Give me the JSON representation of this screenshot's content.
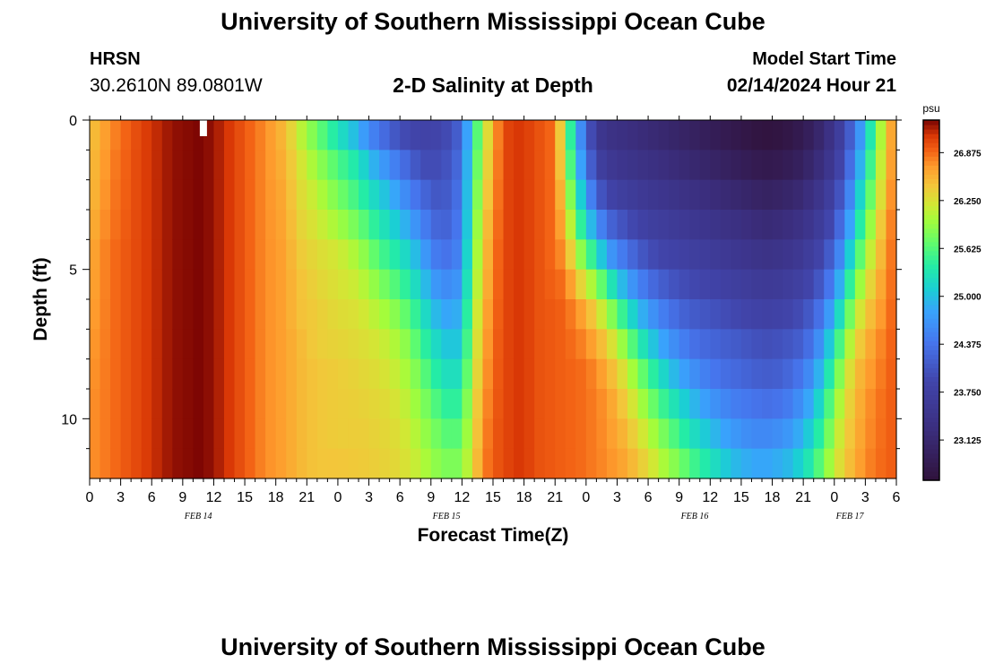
{
  "page": {
    "title_top": "University of Southern Mississippi Ocean Cube",
    "title_bottom": "University of Southern Mississippi Ocean Cube",
    "station": "HRSN",
    "coords": "30.2610N  89.0801W",
    "subtitle": "2-D Salinity at Depth",
    "start_label": "Model Start Time",
    "start_value": "02/14/2024 Hour 21"
  },
  "chart_data": {
    "type": "heatmap",
    "title": "2-D Salinity at Depth",
    "xlabel": "Forecast Time(Z)",
    "ylabel": "Depth (ft)",
    "x_hour_range": [
      0,
      78
    ],
    "ylim": [
      0,
      12
    ],
    "x_ticks": [
      {
        "hour": 0,
        "label": "0"
      },
      {
        "hour": 3,
        "label": "3"
      },
      {
        "hour": 6,
        "label": "6"
      },
      {
        "hour": 9,
        "label": "9"
      },
      {
        "hour": 12,
        "label": "12"
      },
      {
        "hour": 15,
        "label": "15"
      },
      {
        "hour": 18,
        "label": "18"
      },
      {
        "hour": 21,
        "label": "21"
      },
      {
        "hour": 24,
        "label": "0"
      },
      {
        "hour": 27,
        "label": "3"
      },
      {
        "hour": 30,
        "label": "6"
      },
      {
        "hour": 33,
        "label": "9"
      },
      {
        "hour": 36,
        "label": "12"
      },
      {
        "hour": 39,
        "label": "15"
      },
      {
        "hour": 42,
        "label": "18"
      },
      {
        "hour": 45,
        "label": "21"
      },
      {
        "hour": 48,
        "label": "0"
      },
      {
        "hour": 51,
        "label": "3"
      },
      {
        "hour": 54,
        "label": "6"
      },
      {
        "hour": 57,
        "label": "9"
      },
      {
        "hour": 60,
        "label": "12"
      },
      {
        "hour": 63,
        "label": "15"
      },
      {
        "hour": 66,
        "label": "18"
      },
      {
        "hour": 69,
        "label": "21"
      },
      {
        "hour": 72,
        "label": "0"
      },
      {
        "hour": 75,
        "label": "3"
      },
      {
        "hour": 78,
        "label": "6"
      }
    ],
    "date_labels": [
      {
        "hour": 10.5,
        "label": "FEB 14"
      },
      {
        "hour": 34.5,
        "label": "FEB 15"
      },
      {
        "hour": 58.5,
        "label": "FEB 16"
      },
      {
        "hour": 73.5,
        "label": "FEB 17"
      }
    ],
    "y_ticks": [
      {
        "depth": 0,
        "label": "0"
      },
      {
        "depth": 5,
        "label": "5"
      },
      {
        "depth": 10,
        "label": "10"
      }
    ],
    "colorbar": {
      "unit": "psu",
      "range": [
        22.6,
        27.3
      ],
      "ticks": [
        23.125,
        23.75,
        24.375,
        25.0,
        25.625,
        26.25,
        26.875
      ],
      "tick_labels": [
        "23.125",
        "23.750",
        "24.375",
        "25.000",
        "25.625",
        "26.250",
        "26.875"
      ]
    },
    "colormap": [
      [
        22.6,
        "#30123b"
      ],
      [
        23.3,
        "#3b2f80"
      ],
      [
        23.9,
        "#4145ab"
      ],
      [
        24.4,
        "#4675ed"
      ],
      [
        24.8,
        "#39a2fc"
      ],
      [
        25.1,
        "#1bcfd4"
      ],
      [
        25.4,
        "#24eca6"
      ],
      [
        25.7,
        "#61fc6c"
      ],
      [
        26.0,
        "#a4fc3b"
      ],
      [
        26.2,
        "#d1e834"
      ],
      [
        26.45,
        "#f3c63a"
      ],
      [
        26.7,
        "#fe9b2d"
      ],
      [
        26.9,
        "#f36315"
      ],
      [
        27.1,
        "#d93806"
      ],
      [
        27.3,
        "#7a0403"
      ]
    ],
    "grid": {
      "hour_step": 1,
      "depth_layers": 12,
      "profile_hours": [
        0,
        2,
        5,
        8,
        11,
        13,
        15,
        17,
        19,
        20,
        22,
        24,
        26,
        27,
        28,
        29,
        30,
        31,
        32,
        33,
        34,
        35,
        36,
        37,
        38,
        39,
        40,
        41,
        42,
        43,
        44,
        45,
        46,
        47,
        48,
        49,
        50,
        51,
        52,
        53,
        54,
        55,
        56,
        57,
        58,
        59,
        60,
        61,
        62,
        63,
        64,
        65,
        66,
        67,
        68,
        69,
        70,
        71,
        72,
        73,
        74,
        75,
        76,
        77,
        78
      ],
      "depth_profiles": [
        [
          26.45,
          26.48,
          26.5,
          26.55,
          26.6,
          26.62,
          26.65,
          26.68,
          26.7,
          26.72,
          26.72,
          26.72
        ],
        [
          26.75,
          26.78,
          26.8,
          26.82,
          26.85,
          26.85,
          26.85,
          26.85,
          26.85,
          26.85,
          26.85,
          26.85
        ],
        [
          27.05,
          27.05,
          27.05,
          27.05,
          27.05,
          27.05,
          27.05,
          27.05,
          27.05,
          27.05,
          27.05,
          27.05
        ],
        [
          27.25,
          27.25,
          27.25,
          27.25,
          27.25,
          27.25,
          27.25,
          27.25,
          27.25,
          27.25,
          27.25,
          27.25
        ],
        [
          27.3,
          27.3,
          27.3,
          27.3,
          27.3,
          27.3,
          27.3,
          27.3,
          27.3,
          27.3,
          27.3,
          27.3
        ],
        [
          27.15,
          27.15,
          27.15,
          27.15,
          27.15,
          27.15,
          27.15,
          27.15,
          27.15,
          27.15,
          27.15,
          27.15
        ],
        [
          26.95,
          26.95,
          26.95,
          26.95,
          26.95,
          26.95,
          26.95,
          26.95,
          26.95,
          26.95,
          26.95,
          26.95
        ],
        [
          26.75,
          26.75,
          26.75,
          26.75,
          26.75,
          26.75,
          26.75,
          26.75,
          26.75,
          26.75,
          26.75,
          26.75
        ],
        [
          26.5,
          26.55,
          26.6,
          26.62,
          26.65,
          26.65,
          26.65,
          26.65,
          26.65,
          26.65,
          26.65,
          26.65
        ],
        [
          26.2,
          26.3,
          26.35,
          26.4,
          26.45,
          26.5,
          26.5,
          26.55,
          26.55,
          26.55,
          26.55,
          26.55
        ],
        [
          25.75,
          25.95,
          26.1,
          26.2,
          26.3,
          26.35,
          26.4,
          26.4,
          26.45,
          26.45,
          26.45,
          26.45
        ],
        [
          25.3,
          25.6,
          25.8,
          26.0,
          26.2,
          26.25,
          26.3,
          26.35,
          26.4,
          26.4,
          26.4,
          26.45
        ],
        [
          24.9,
          25.3,
          25.5,
          25.75,
          26.0,
          26.15,
          26.25,
          26.3,
          26.35,
          26.38,
          26.4,
          26.42
        ],
        [
          24.6,
          25.0,
          25.3,
          25.55,
          25.8,
          26.0,
          26.15,
          26.25,
          26.3,
          26.35,
          26.38,
          26.4
        ],
        [
          24.4,
          24.8,
          25.1,
          25.35,
          25.6,
          25.85,
          26.05,
          26.2,
          26.28,
          26.32,
          26.35,
          26.38
        ],
        [
          24.2,
          24.6,
          24.95,
          25.2,
          25.45,
          25.7,
          25.95,
          26.1,
          26.2,
          26.28,
          26.32,
          26.35
        ],
        [
          24.0,
          24.4,
          24.7,
          25.0,
          25.3,
          25.55,
          25.8,
          26.0,
          26.1,
          26.2,
          26.25,
          26.3
        ],
        [
          23.9,
          24.2,
          24.5,
          24.8,
          25.1,
          25.35,
          25.6,
          25.8,
          25.95,
          26.05,
          26.15,
          26.2
        ],
        [
          23.85,
          24.0,
          24.3,
          24.55,
          24.85,
          25.1,
          25.35,
          25.55,
          25.75,
          25.9,
          26.0,
          26.1
        ],
        [
          23.85,
          23.95,
          24.15,
          24.35,
          24.55,
          24.8,
          25.05,
          25.3,
          25.5,
          25.7,
          25.85,
          25.95
        ],
        [
          23.9,
          24.0,
          24.05,
          24.15,
          24.35,
          24.6,
          24.85,
          25.1,
          25.3,
          25.5,
          25.7,
          25.85
        ],
        [
          24.0,
          24.1,
          24.2,
          24.3,
          24.4,
          24.6,
          24.8,
          25.0,
          25.2,
          25.4,
          25.6,
          25.8
        ],
        [
          24.3,
          24.4,
          24.45,
          24.5,
          24.6,
          24.75,
          24.95,
          25.1,
          25.3,
          25.5,
          25.7,
          25.85
        ],
        [
          25.3,
          25.4,
          25.5,
          25.6,
          25.7,
          25.8,
          25.9,
          26.0,
          26.1,
          26.2,
          26.25,
          26.3
        ],
        [
          26.0,
          26.1,
          26.2,
          26.3,
          26.35,
          26.4,
          26.5,
          26.55,
          26.6,
          26.65,
          26.7,
          26.75
        ],
        [
          26.6,
          26.65,
          26.7,
          26.75,
          26.8,
          26.82,
          26.85,
          26.88,
          26.9,
          26.92,
          26.95,
          26.95
        ],
        [
          27.0,
          27.0,
          27.0,
          27.0,
          27.0,
          27.0,
          27.0,
          27.0,
          27.0,
          27.0,
          27.0,
          27.0
        ],
        [
          27.1,
          27.1,
          27.1,
          27.1,
          27.1,
          27.1,
          27.1,
          27.1,
          27.1,
          27.1,
          27.1,
          27.1
        ],
        [
          27.1,
          27.1,
          27.1,
          27.1,
          27.1,
          27.1,
          27.1,
          27.1,
          27.1,
          27.1,
          27.1,
          27.1
        ],
        [
          27.0,
          27.0,
          27.0,
          27.0,
          27.0,
          27.0,
          27.0,
          27.0,
          27.0,
          27.0,
          27.0,
          27.0
        ],
        [
          26.95,
          26.95,
          26.95,
          26.95,
          26.95,
          26.95,
          26.95,
          26.95,
          26.95,
          26.95,
          26.95,
          26.95
        ],
        [
          26.85,
          26.85,
          26.85,
          26.85,
          26.85,
          26.9,
          26.95,
          26.95,
          26.95,
          26.95,
          26.95,
          26.95
        ],
        [
          26.0,
          26.1,
          26.3,
          26.5,
          26.7,
          26.85,
          26.9,
          26.9,
          26.9,
          26.9,
          26.9,
          26.9
        ],
        [
          24.9,
          25.1,
          25.4,
          25.7,
          26.1,
          26.5,
          26.75,
          26.85,
          26.9,
          26.9,
          26.9,
          26.9
        ],
        [
          24.3,
          24.5,
          24.8,
          25.2,
          25.7,
          26.2,
          26.6,
          26.75,
          26.85,
          26.85,
          26.85,
          26.85
        ],
        [
          23.6,
          23.8,
          24.2,
          24.7,
          25.3,
          25.9,
          26.35,
          26.6,
          26.75,
          26.8,
          26.8,
          26.8
        ],
        [
          23.4,
          23.6,
          23.9,
          24.3,
          24.8,
          25.5,
          26.0,
          26.4,
          26.6,
          26.7,
          26.72,
          26.75
        ],
        [
          23.35,
          23.5,
          23.75,
          24.1,
          24.55,
          25.1,
          25.7,
          26.1,
          26.4,
          26.55,
          26.62,
          26.68
        ],
        [
          23.3,
          23.45,
          23.7,
          24.0,
          24.35,
          24.8,
          25.3,
          25.8,
          26.15,
          26.35,
          26.5,
          26.6
        ],
        [
          23.25,
          23.4,
          23.6,
          23.85,
          24.15,
          24.55,
          25.0,
          25.45,
          25.85,
          26.1,
          26.3,
          26.45
        ],
        [
          23.2,
          23.35,
          23.55,
          23.75,
          24.0,
          24.35,
          24.75,
          25.15,
          25.55,
          25.85,
          26.1,
          26.3
        ],
        [
          23.15,
          23.3,
          23.5,
          23.7,
          23.9,
          24.2,
          24.55,
          24.9,
          25.3,
          25.6,
          25.9,
          26.1
        ],
        [
          23.1,
          23.25,
          23.45,
          23.65,
          23.85,
          24.1,
          24.4,
          24.7,
          25.05,
          25.4,
          25.7,
          25.95
        ],
        [
          23.05,
          23.2,
          23.4,
          23.6,
          23.8,
          24.0,
          24.25,
          24.55,
          24.85,
          25.2,
          25.5,
          25.8
        ],
        [
          23.0,
          23.15,
          23.35,
          23.55,
          23.75,
          23.95,
          24.15,
          24.4,
          24.7,
          25.0,
          25.3,
          25.6
        ],
        [
          22.95,
          23.1,
          23.3,
          23.5,
          23.7,
          23.9,
          24.1,
          24.3,
          24.55,
          24.85,
          25.15,
          25.45
        ],
        [
          22.9,
          23.05,
          23.25,
          23.45,
          23.65,
          23.85,
          24.05,
          24.25,
          24.45,
          24.7,
          25.0,
          25.3
        ],
        [
          22.85,
          23.0,
          23.2,
          23.4,
          23.6,
          23.8,
          24.0,
          24.2,
          24.35,
          24.6,
          24.85,
          25.15
        ],
        [
          22.8,
          22.95,
          23.15,
          23.35,
          23.55,
          23.75,
          23.95,
          24.15,
          24.3,
          24.5,
          24.75,
          25.0
        ],
        [
          22.75,
          22.9,
          23.1,
          23.3,
          23.5,
          23.7,
          23.9,
          24.1,
          24.25,
          24.45,
          24.65,
          24.9
        ],
        [
          22.7,
          22.85,
          23.05,
          23.25,
          23.45,
          23.65,
          23.85,
          24.05,
          24.2,
          24.4,
          24.6,
          24.85
        ],
        [
          22.65,
          22.8,
          23.0,
          23.2,
          23.4,
          23.6,
          23.8,
          24.0,
          24.15,
          24.35,
          24.55,
          24.8
        ],
        [
          22.65,
          22.8,
          23.0,
          23.2,
          23.4,
          23.6,
          23.8,
          24.0,
          24.15,
          24.35,
          24.6,
          24.85
        ],
        [
          22.7,
          22.85,
          23.05,
          23.25,
          23.45,
          23.65,
          23.85,
          24.05,
          24.2,
          24.4,
          24.65,
          24.9
        ],
        [
          22.75,
          22.9,
          23.1,
          23.3,
          23.5,
          23.7,
          23.9,
          24.1,
          24.3,
          24.5,
          24.75,
          25.0
        ],
        [
          22.85,
          23.0,
          23.2,
          23.4,
          23.6,
          23.8,
          24.0,
          24.2,
          24.45,
          24.7,
          24.95,
          25.2
        ],
        [
          23.0,
          23.15,
          23.35,
          23.55,
          23.75,
          23.95,
          24.2,
          24.45,
          24.7,
          24.95,
          25.2,
          25.45
        ],
        [
          23.2,
          23.35,
          23.55,
          23.75,
          23.95,
          24.2,
          24.5,
          24.8,
          25.1,
          25.35,
          25.6,
          25.8
        ],
        [
          23.5,
          23.65,
          23.85,
          24.05,
          24.3,
          24.6,
          24.95,
          25.3,
          25.6,
          25.85,
          26.0,
          26.15
        ],
        [
          23.9,
          24.05,
          24.25,
          24.5,
          24.8,
          25.15,
          25.5,
          25.85,
          26.1,
          26.25,
          26.35,
          26.4
        ],
        [
          24.4,
          24.6,
          24.85,
          25.1,
          25.4,
          25.75,
          26.05,
          26.3,
          26.45,
          26.5,
          26.55,
          26.6
        ],
        [
          25.0,
          25.2,
          25.45,
          25.7,
          25.95,
          26.2,
          26.4,
          26.55,
          26.65,
          26.7,
          26.72,
          26.75
        ],
        [
          25.7,
          25.85,
          26.0,
          26.2,
          26.35,
          26.5,
          26.6,
          26.7,
          26.75,
          26.8,
          26.82,
          26.85
        ],
        [
          26.4,
          26.45,
          26.55,
          26.65,
          26.7,
          26.75,
          26.8,
          26.85,
          26.88,
          26.9,
          26.9,
          26.9
        ],
        [
          26.85,
          26.88,
          26.9,
          26.92,
          26.95,
          26.95,
          26.95,
          26.95,
          26.95,
          26.95,
          26.95,
          26.95
        ]
      ]
    }
  }
}
